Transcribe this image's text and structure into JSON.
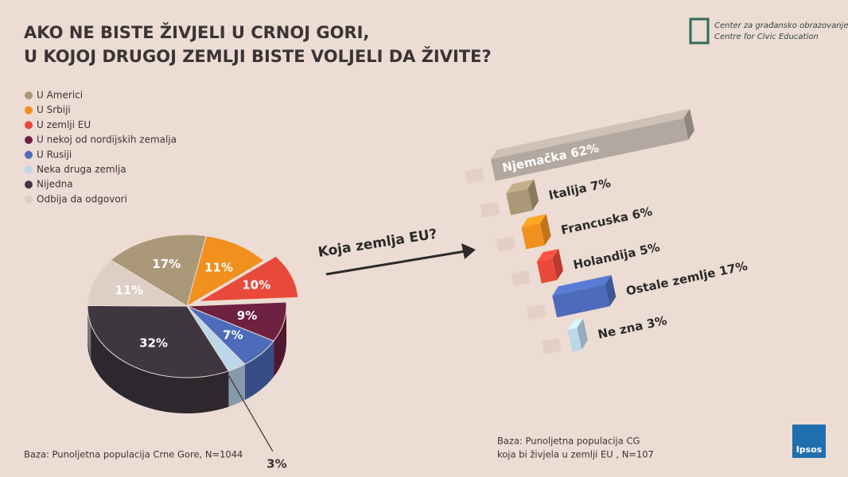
{
  "logo": {
    "line1": "Center za građansko obrazovanje",
    "line2": "Centre for Civic Education",
    "brand": "Ipsos"
  },
  "chart_data": [
    {
      "type": "pie",
      "title": [
        "AKO NE BISTE ŽIVJELI U CRNOJ GORI,",
        "U KOJOJ DRUGOJ ZEMLJI BISTE VOLJELI DA ŽIVITE?"
      ],
      "categories": [
        "U Americi",
        "U Srbiji",
        "U zemlji EU",
        "U nekoj od nordijskih zemalja",
        "U Rusiji",
        "Neka druga zemlja",
        "Nijedna",
        "Odbija da odgovori"
      ],
      "values": [
        17,
        11,
        10,
        9,
        7,
        3,
        32,
        11
      ],
      "value_labels": [
        "17%",
        "11%",
        "10%",
        "9%",
        "7%",
        "3%",
        "32%",
        "11%"
      ],
      "colors": [
        "#ab9878",
        "#f0901e",
        "#e8493a",
        "#6e2140",
        "#4d6bba",
        "#bcd6ea",
        "#3e3740",
        "#ddcfc5"
      ],
      "note": "Baza: Punoljetna populacija Crne Gore, N=1044"
    },
    {
      "type": "bar",
      "annotation": "Koja zemlja EU?",
      "categories": [
        "Njemačka",
        "Italija",
        "Francuska",
        "Holandija",
        "Ostale zemlje",
        "Ne zna"
      ],
      "values": [
        62,
        7,
        6,
        5,
        17,
        3
      ],
      "value_labels": [
        "62%",
        "7%",
        "6%",
        "5%",
        "17%",
        "3%"
      ],
      "colors": [
        "#b3a89f",
        "#ab9878",
        "#f0901e",
        "#e8493a",
        "#4d6bba",
        "#bcd6ea"
      ],
      "note": [
        "Baza: Punoljetna populacija CG",
        "koja bi živjela u zemlji EU , N=107"
      ]
    }
  ]
}
